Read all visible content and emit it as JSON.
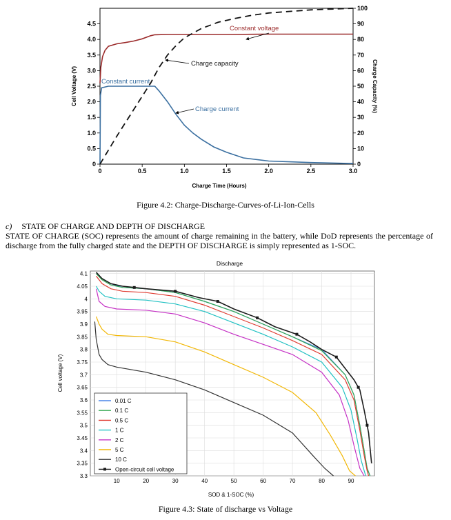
{
  "figure1": {
    "caption": "Figure 4.2: Charge-Discharge-Curves-of-Li-Ion-Cells",
    "chart_data": {
      "type": "line",
      "title": "",
      "xlabel": "Charge Time (Hours)",
      "ylabel": "Cell Voltage (V)",
      "y2label": "Charge Capacity (%)",
      "xlim": [
        0,
        3.0
      ],
      "ylim": [
        0,
        5.0
      ],
      "y2lim": [
        0,
        100
      ],
      "x_ticks": [
        "0",
        "0.5",
        "1.0",
        "1.5",
        "2.0",
        "2.5",
        "3.0"
      ],
      "y_ticks": [
        "0",
        "0.5",
        "1.0",
        "1.5",
        "2.0",
        "2.5",
        "3.0",
        "3.5",
        "4.0",
        "4.5"
      ],
      "y2_ticks": [
        "0",
        "10",
        "20",
        "30",
        "40",
        "50",
        "60",
        "70",
        "80",
        "90",
        "100"
      ],
      "grid": false,
      "annotations": [
        "Constant voltage",
        "Charge capacity",
        "Constant current",
        "Charge current"
      ],
      "series": [
        {
          "color": "#9b2a2a",
          "axis": "left",
          "x": [
            0,
            0.01,
            0.03,
            0.06,
            0.1,
            0.2,
            0.3,
            0.4,
            0.5,
            0.6,
            0.65,
            0.8,
            1.0,
            1.5,
            2.0,
            2.5,
            3.0
          ],
          "y": [
            2.6,
            3.1,
            3.45,
            3.65,
            3.78,
            3.86,
            3.9,
            3.95,
            4.02,
            4.12,
            4.15,
            4.16,
            4.16,
            4.16,
            4.17,
            4.17,
            4.17
          ]
        },
        {
          "color": "#3a6fa0",
          "axis": "left",
          "x": [
            0,
            0.005,
            0.02,
            0.1,
            0.3,
            0.5,
            0.6,
            0.65,
            0.7,
            0.8,
            0.9,
            1.0,
            1.1,
            1.2,
            1.35,
            1.5,
            1.7,
            2.0,
            2.5,
            3.0
          ],
          "y": [
            0,
            2.2,
            2.45,
            2.5,
            2.5,
            2.5,
            2.5,
            2.5,
            2.35,
            2.0,
            1.6,
            1.25,
            1.0,
            0.8,
            0.55,
            0.38,
            0.2,
            0.1,
            0.05,
            0.02
          ]
        },
        {
          "color": "#111111",
          "axis": "right",
          "dashed": true,
          "x": [
            0,
            0.2,
            0.4,
            0.6,
            0.7,
            0.8,
            0.9,
            1.0,
            1.2,
            1.4,
            1.6,
            1.8,
            2.0,
            2.5,
            3.0
          ],
          "y": [
            0,
            18,
            35,
            52,
            62,
            70,
            76,
            81,
            87,
            91,
            93.5,
            95.5,
            97,
            99,
            100
          ]
        }
      ]
    }
  },
  "section": {
    "index": "c)",
    "heading": "STATE OF CHARGE AND DEPTH OF DISCHARGE",
    "body": "STATE OF CHARGE (SOC) represents the amount of charge remaining in the battery, while DoD represents the percentage of discharge from the fully charged state and the DEPTH OF DISCHARGE is simply represented as 1-SOC."
  },
  "figure2": {
    "caption": "Figure 4.3: State of discharge vs Voltage",
    "chart_data": {
      "type": "line",
      "title": "Discharge",
      "xlabel": "SOD & 1-SOC (%)",
      "ylabel": "Cell voltage (V)",
      "xlim": [
        1,
        98
      ],
      "ylim": [
        3.3,
        4.11
      ],
      "x_ticks": [
        "10",
        "20",
        "30",
        "40",
        "50",
        "60",
        "70",
        "80",
        "90"
      ],
      "y_ticks": [
        "3.3",
        "3.35",
        "3.4",
        "3.45",
        "3.5",
        "3.55",
        "3.6",
        "3.65",
        "3.7",
        "3.75",
        "3.8",
        "3.85",
        "3.9",
        "3.95",
        "4",
        "4.05",
        "4.1"
      ],
      "grid": true,
      "legend_position": "bottom-left",
      "series": [
        {
          "name": "0.01 C",
          "color": "#4a86e8",
          "x": [
            3,
            5,
            8,
            12,
            20,
            30,
            40,
            50,
            60,
            70,
            80,
            88,
            91,
            93,
            94.5,
            95.5,
            96.5
          ],
          "y": [
            4.1,
            4.08,
            4.06,
            4.045,
            4.04,
            4.025,
            3.99,
            3.95,
            3.9,
            3.85,
            3.8,
            3.7,
            3.62,
            3.5,
            3.4,
            3.33,
            3.3
          ]
        },
        {
          "name": "0.1 C",
          "color": "#34a853",
          "x": [
            3,
            5,
            8,
            12,
            20,
            30,
            40,
            50,
            60,
            70,
            80,
            88,
            91,
            93,
            94.5,
            95.5,
            96.5
          ],
          "y": [
            4.1,
            4.075,
            4.055,
            4.045,
            4.04,
            4.025,
            3.99,
            3.95,
            3.9,
            3.85,
            3.795,
            3.7,
            3.62,
            3.5,
            3.4,
            3.33,
            3.3
          ]
        },
        {
          "name": "0.5 C",
          "color": "#e03c31",
          "x": [
            3,
            5,
            8,
            12,
            20,
            30,
            40,
            50,
            60,
            70,
            80,
            88,
            91,
            93,
            94.5,
            95.5,
            96
          ],
          "y": [
            4.09,
            4.06,
            4.04,
            4.03,
            4.025,
            4.01,
            3.975,
            3.93,
            3.885,
            3.835,
            3.78,
            3.68,
            3.6,
            3.48,
            3.38,
            3.32,
            3.3
          ]
        },
        {
          "name": "1 C",
          "color": "#22c1c3",
          "x": [
            3,
            4,
            6,
            10,
            20,
            30,
            40,
            50,
            60,
            70,
            80,
            87,
            90,
            92,
            93.5,
            95
          ],
          "y": [
            4.05,
            4.03,
            4.01,
            4.0,
            3.995,
            3.98,
            3.95,
            3.905,
            3.86,
            3.81,
            3.75,
            3.65,
            3.56,
            3.45,
            3.36,
            3.3
          ]
        },
        {
          "name": "2 C",
          "color": "#c532c5",
          "x": [
            3,
            4,
            6,
            10,
            20,
            30,
            40,
            50,
            60,
            70,
            80,
            86,
            89,
            91,
            93,
            94.5
          ],
          "y": [
            4.04,
            3.99,
            3.97,
            3.96,
            3.955,
            3.94,
            3.905,
            3.86,
            3.82,
            3.78,
            3.71,
            3.62,
            3.52,
            3.42,
            3.33,
            3.3
          ]
        },
        {
          "name": "5 C",
          "color": "#f2b705",
          "x": [
            3,
            4,
            5,
            7,
            10,
            20,
            30,
            40,
            50,
            60,
            70,
            78,
            83,
            87,
            89.5,
            91.5
          ],
          "y": [
            3.93,
            3.9,
            3.88,
            3.86,
            3.855,
            3.85,
            3.83,
            3.79,
            3.74,
            3.69,
            3.63,
            3.55,
            3.46,
            3.38,
            3.32,
            3.3
          ]
        },
        {
          "name": "10 C",
          "color": "#333333",
          "x": [
            2.5,
            3,
            4,
            5,
            7,
            10,
            20,
            30,
            40,
            50,
            60,
            70,
            77,
            81,
            84
          ],
          "y": [
            3.91,
            3.84,
            3.78,
            3.76,
            3.74,
            3.73,
            3.71,
            3.68,
            3.64,
            3.59,
            3.54,
            3.47,
            3.38,
            3.33,
            3.3
          ]
        },
        {
          "name": "Open-circuit cell voltage",
          "color": "#1c1c1c",
          "markers": true,
          "x": [
            3,
            5,
            8,
            12,
            16,
            20,
            30,
            38,
            44.5,
            50,
            58,
            64,
            71.5,
            76,
            80,
            85,
            89,
            91,
            93,
            94.5,
            96,
            97
          ],
          "y": [
            4.105,
            4.08,
            4.06,
            4.05,
            4.045,
            4.04,
            4.03,
            4.005,
            3.99,
            3.96,
            3.925,
            3.89,
            3.86,
            3.83,
            3.8,
            3.77,
            3.71,
            3.68,
            3.64,
            3.56,
            3.47,
            3.35
          ],
          "marker_x": [
            16,
            30,
            44.5,
            58,
            71.5,
            85,
            92.5,
            95.5
          ]
        }
      ]
    }
  }
}
